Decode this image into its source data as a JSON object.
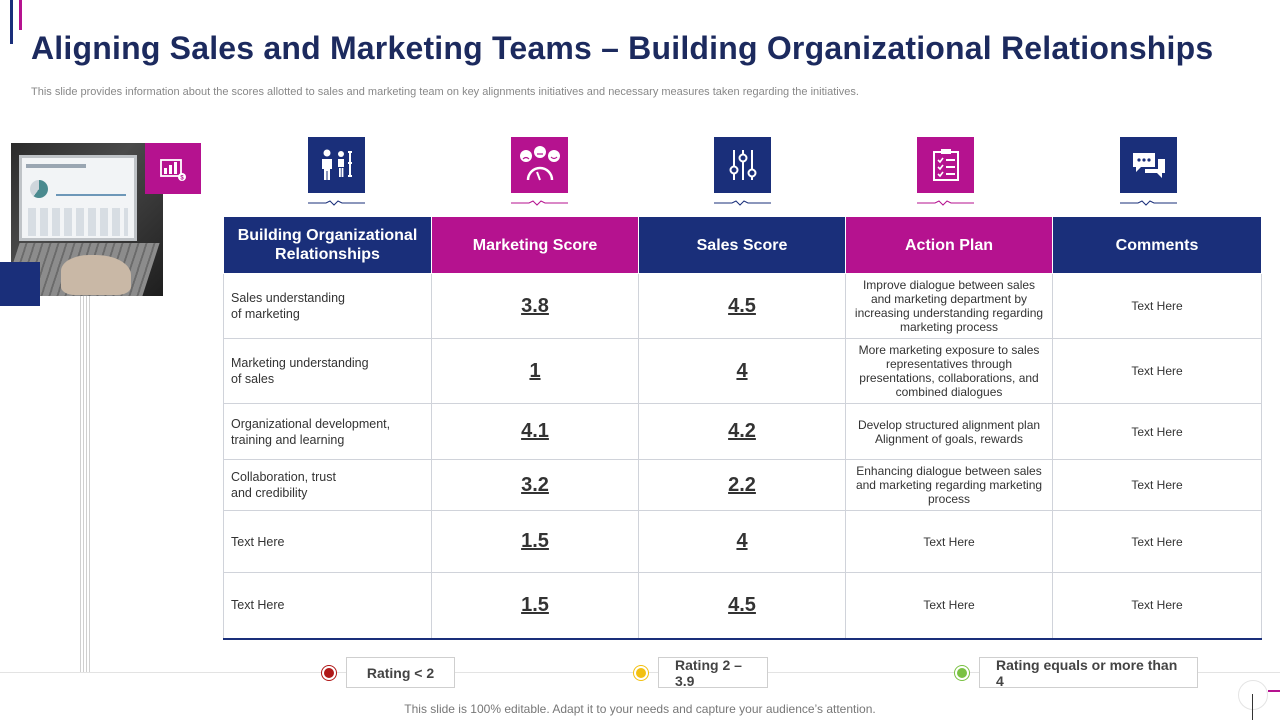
{
  "header": {
    "title": "Aligning Sales and Marketing Teams – Building Organizational Relationships",
    "subtitle": "This slide provides information about the scores allotted to sales and marketing team on key alignments initiatives and necessary measures taken regarding the initiatives."
  },
  "colors": {
    "navy": "#1a2f7a",
    "magenta": "#b5128f",
    "rating_low": "#b01717",
    "rating_mid": "#e8b41a",
    "rating_high": "#7ac143"
  },
  "icons": [
    "people-org-icon",
    "emotion-meter-icon",
    "sliders-icon",
    "checklist-icon",
    "chat-bubbles-icon"
  ],
  "table": {
    "headers": [
      "Building Organizational Relationships",
      "Marketing Score",
      "Sales Score",
      "Action Plan",
      "Comments"
    ],
    "rows": [
      {
        "label": "Sales understanding\nof marketing",
        "marketing": "3.8",
        "sales": "4.5",
        "plan": "Improve dialogue between sales and marketing department by increasing understanding regarding marketing process",
        "comment": "Text Here"
      },
      {
        "label": "Marketing understanding\nof sales",
        "marketing": "1",
        "sales": "4",
        "plan": "More marketing exposure to sales representatives through presentations, collaborations, and combined dialogues",
        "comment": "Text Here"
      },
      {
        "label": "Organizational development,\ntraining and learning",
        "marketing": "4.1",
        "sales": "4.2",
        "plan": "Develop structured alignment plan Alignment of goals, rewards",
        "comment": "Text Here"
      },
      {
        "label": "Collaboration, trust\nand credibility",
        "marketing": "3.2",
        "sales": "2.2",
        "plan": "Enhancing dialogue between sales and marketing regarding marketing process",
        "comment": "Text Here"
      },
      {
        "label": "Text Here",
        "marketing": "1.5",
        "sales": "4",
        "plan": "Text Here",
        "comment": "Text Here"
      },
      {
        "label": "Text Here",
        "marketing": "1.5",
        "sales": "4.5",
        "plan": "Text Here",
        "comment": "Text Here"
      }
    ]
  },
  "legend": {
    "low": "Rating < 2",
    "mid": "Rating 2 – 3.9",
    "high": "Rating equals or more than 4"
  },
  "footer": "This slide is 100% editable. Adapt it to your needs and capture your audience’s attention."
}
